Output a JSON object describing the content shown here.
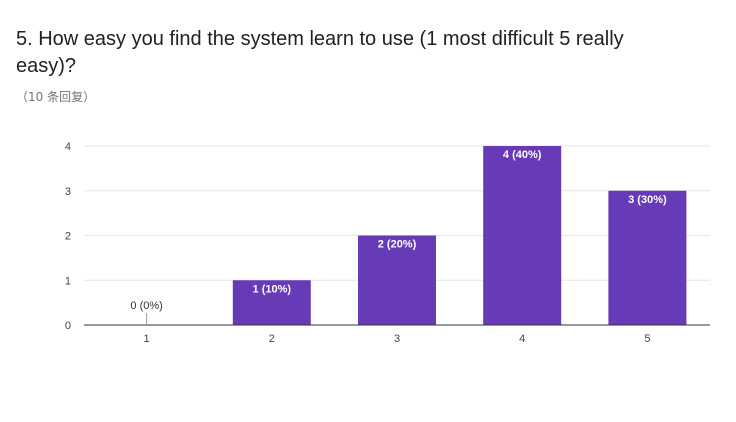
{
  "question": {
    "title": "5. How easy you find the system learn to use (1 most difficult 5 really easy)?",
    "response_count": "（10 条回复）"
  },
  "colors": {
    "bar": "#673AB7",
    "gridline": "#e6e6e6",
    "baseline": "#333333"
  },
  "chart_data": {
    "type": "bar",
    "categories": [
      "1",
      "2",
      "3",
      "4",
      "5"
    ],
    "values": [
      0,
      1,
      2,
      4,
      3
    ],
    "data_labels": [
      "0 (0%)",
      "1 (10%)",
      "2 (20%)",
      "4 (40%)",
      "3 (30%)"
    ],
    "yticks": [
      "0",
      "1",
      "2",
      "3",
      "4"
    ],
    "ylim": [
      0,
      4
    ],
    "grid": true,
    "legend": "none"
  }
}
